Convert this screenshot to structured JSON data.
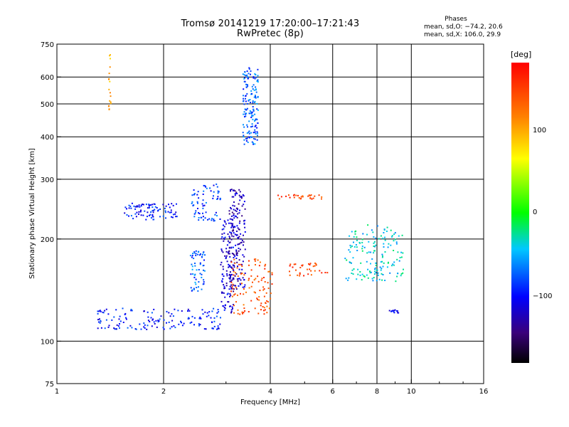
{
  "title": {
    "line1": "Tromsø 20141219 17:20:00–17:21:43",
    "line2": "RwPretec (8p)"
  },
  "phases": {
    "heading": "Phases",
    "o_stat": "mean, sd,O: −74.2, 20.6",
    "x_stat": "mean, sd,X: 106.0, 29.9"
  },
  "colorbar": {
    "unit": "[deg]",
    "ticks": [
      {
        "label": "100",
        "value": 100
      },
      {
        "label": "0",
        "value": 0
      },
      {
        "label": "−100",
        "value": -100
      }
    ],
    "range": [
      -180,
      180
    ]
  },
  "chart_data": {
    "type": "scatter",
    "xlabel": "Frequency [MHz]",
    "ylabel": "Stationary phase Virtual Height [km]",
    "xscale": "log",
    "yscale": "log",
    "xlim": [
      1,
      16
    ],
    "ylim": [
      75,
      750
    ],
    "x_ticks": [
      {
        "v": 1,
        "label": "1"
      },
      {
        "v": 2,
        "label": "2"
      },
      {
        "v": 4,
        "label": "4"
      },
      {
        "v": 6,
        "label": "6"
      },
      {
        "v": 8,
        "label": "8"
      },
      {
        "v": 10,
        "label": "10"
      },
      {
        "v": 16,
        "label": "16"
      }
    ],
    "x_grid": [
      2,
      4,
      6,
      8,
      10
    ],
    "y_ticks": [
      {
        "v": 75,
        "label": "75"
      },
      {
        "v": 100,
        "label": "100"
      },
      {
        "v": 200,
        "label": "200"
      },
      {
        "v": 300,
        "label": "300"
      },
      {
        "v": 400,
        "label": "400"
      },
      {
        "v": 500,
        "label": "500"
      },
      {
        "v": 600,
        "label": "600"
      },
      {
        "v": 750,
        "label": "750"
      }
    ],
    "y_grid": [
      100,
      200,
      300,
      400,
      500,
      600
    ],
    "grid": true,
    "colorscale": "phase rainbow (deg)",
    "clusters": [
      {
        "desc": "O-trace low",
        "x": [
          1.3,
          2.9
        ],
        "y": [
          108,
          125
        ],
        "phase": -95,
        "n": 150
      },
      {
        "desc": "O-trace rise",
        "x": [
          2.9,
          3.15
        ],
        "y": [
          120,
          230
        ],
        "phase": -110,
        "n": 110
      },
      {
        "desc": "O cusp",
        "x": [
          3.05,
          3.4
        ],
        "y": [
          140,
          280
        ],
        "phase": -125,
        "n": 180
      },
      {
        "desc": "patch 2.4",
        "x": [
          2.38,
          2.62
        ],
        "y": [
          140,
          185
        ],
        "phase": -75,
        "n": 60
      },
      {
        "desc": "F1 band",
        "x": [
          1.55,
          2.2
        ],
        "y": [
          228,
          255
        ],
        "phase": -95,
        "n": 90
      },
      {
        "desc": "F1 band 2",
        "x": [
          2.4,
          2.9
        ],
        "y": [
          225,
          290
        ],
        "phase": -85,
        "n": 70
      },
      {
        "desc": "spread F",
        "x": [
          3.35,
          3.7
        ],
        "y": [
          380,
          640
        ],
        "phase": -75,
        "n": 160
      },
      {
        "desc": "X-trace",
        "x": [
          3.1,
          4.05
        ],
        "y": [
          120,
          175
        ],
        "phase": 140,
        "n": 110
      },
      {
        "desc": "echo 265",
        "x": [
          4.2,
          5.6
        ],
        "y": [
          262,
          270
        ],
        "phase": 150,
        "n": 30
      },
      {
        "desc": "mix 160",
        "x": [
          4.5,
          5.8
        ],
        "y": [
          155,
          170
        ],
        "phase": 150,
        "n": 35
      },
      {
        "desc": "mix high",
        "x": [
          6.5,
          9.5
        ],
        "y": [
          150,
          220
        ],
        "phase": -40,
        "n": 160
      },
      {
        "desc": "patch 9",
        "x": [
          8.6,
          9.2
        ],
        "y": [
          121,
          124
        ],
        "phase": -110,
        "n": 12
      },
      {
        "desc": "vertical 1.4",
        "x": [
          1.4,
          1.42
        ],
        "y": [
          480,
          700
        ],
        "phase": 95,
        "n": 18
      }
    ]
  }
}
